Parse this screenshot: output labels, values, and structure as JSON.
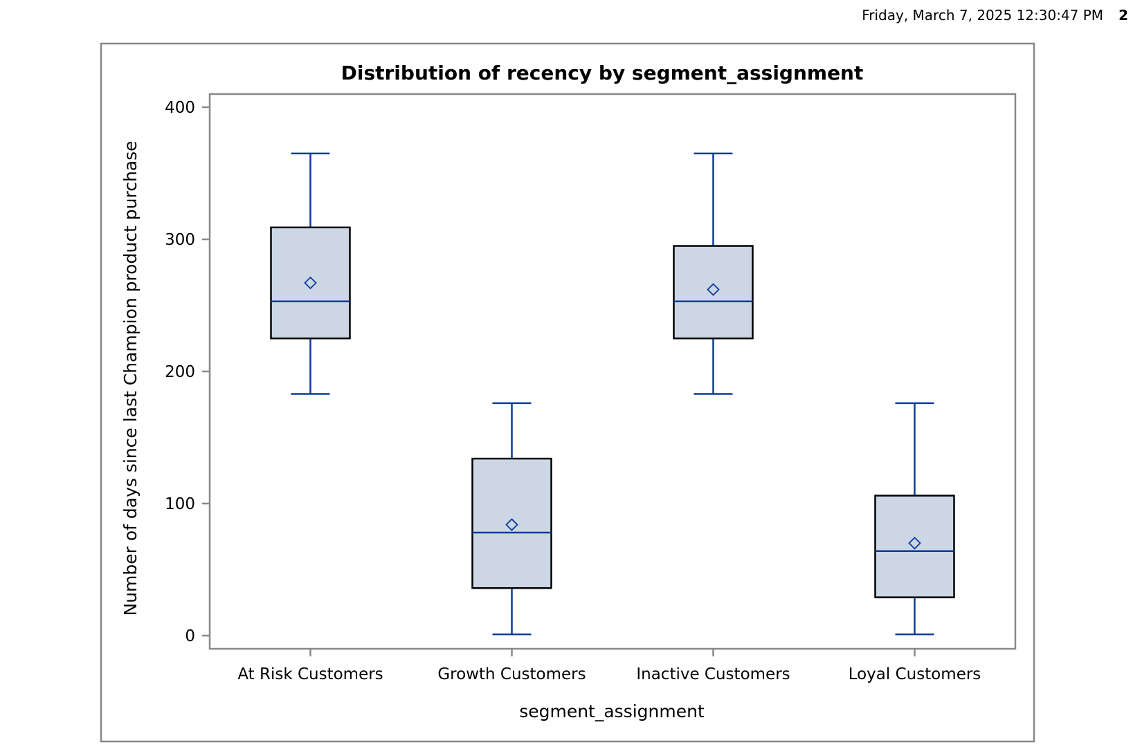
{
  "header": {
    "datetime": "Friday, March  7, 2025 12:30:47 PM",
    "page_number": "2"
  },
  "colors": {
    "box_fill": "#ccd6e5",
    "box_outline": "#000000",
    "whisker": "#0b3b9c",
    "median": "#0b3b9c",
    "mean_marker": "#0b3b9c",
    "frame": "#888888"
  },
  "chart_data": {
    "type": "box",
    "title": "Distribution of recency by segment_assignment",
    "xlabel": "segment_assignment",
    "ylabel": "Number of days since last Champion product purchase",
    "ylim": [
      -10,
      410
    ],
    "yticks": [
      0,
      100,
      200,
      300,
      400
    ],
    "grid": false,
    "mean_marker": "diamond",
    "categories": [
      "At Risk Customers",
      "Growth Customers",
      "Inactive Customers",
      "Loyal Customers"
    ],
    "boxes": [
      {
        "category": "At Risk Customers",
        "whisker_low": 183,
        "q1": 225,
        "median": 253,
        "q3": 309,
        "whisker_high": 365,
        "mean": 267
      },
      {
        "category": "Growth Customers",
        "whisker_low": 1,
        "q1": 36,
        "median": 78,
        "q3": 134,
        "whisker_high": 176,
        "mean": 84
      },
      {
        "category": "Inactive Customers",
        "whisker_low": 183,
        "q1": 225,
        "median": 253,
        "q3": 295,
        "whisker_high": 365,
        "mean": 262
      },
      {
        "category": "Loyal Customers",
        "whisker_low": 1,
        "q1": 29,
        "median": 64,
        "q3": 106,
        "whisker_high": 176,
        "mean": 70
      }
    ]
  }
}
